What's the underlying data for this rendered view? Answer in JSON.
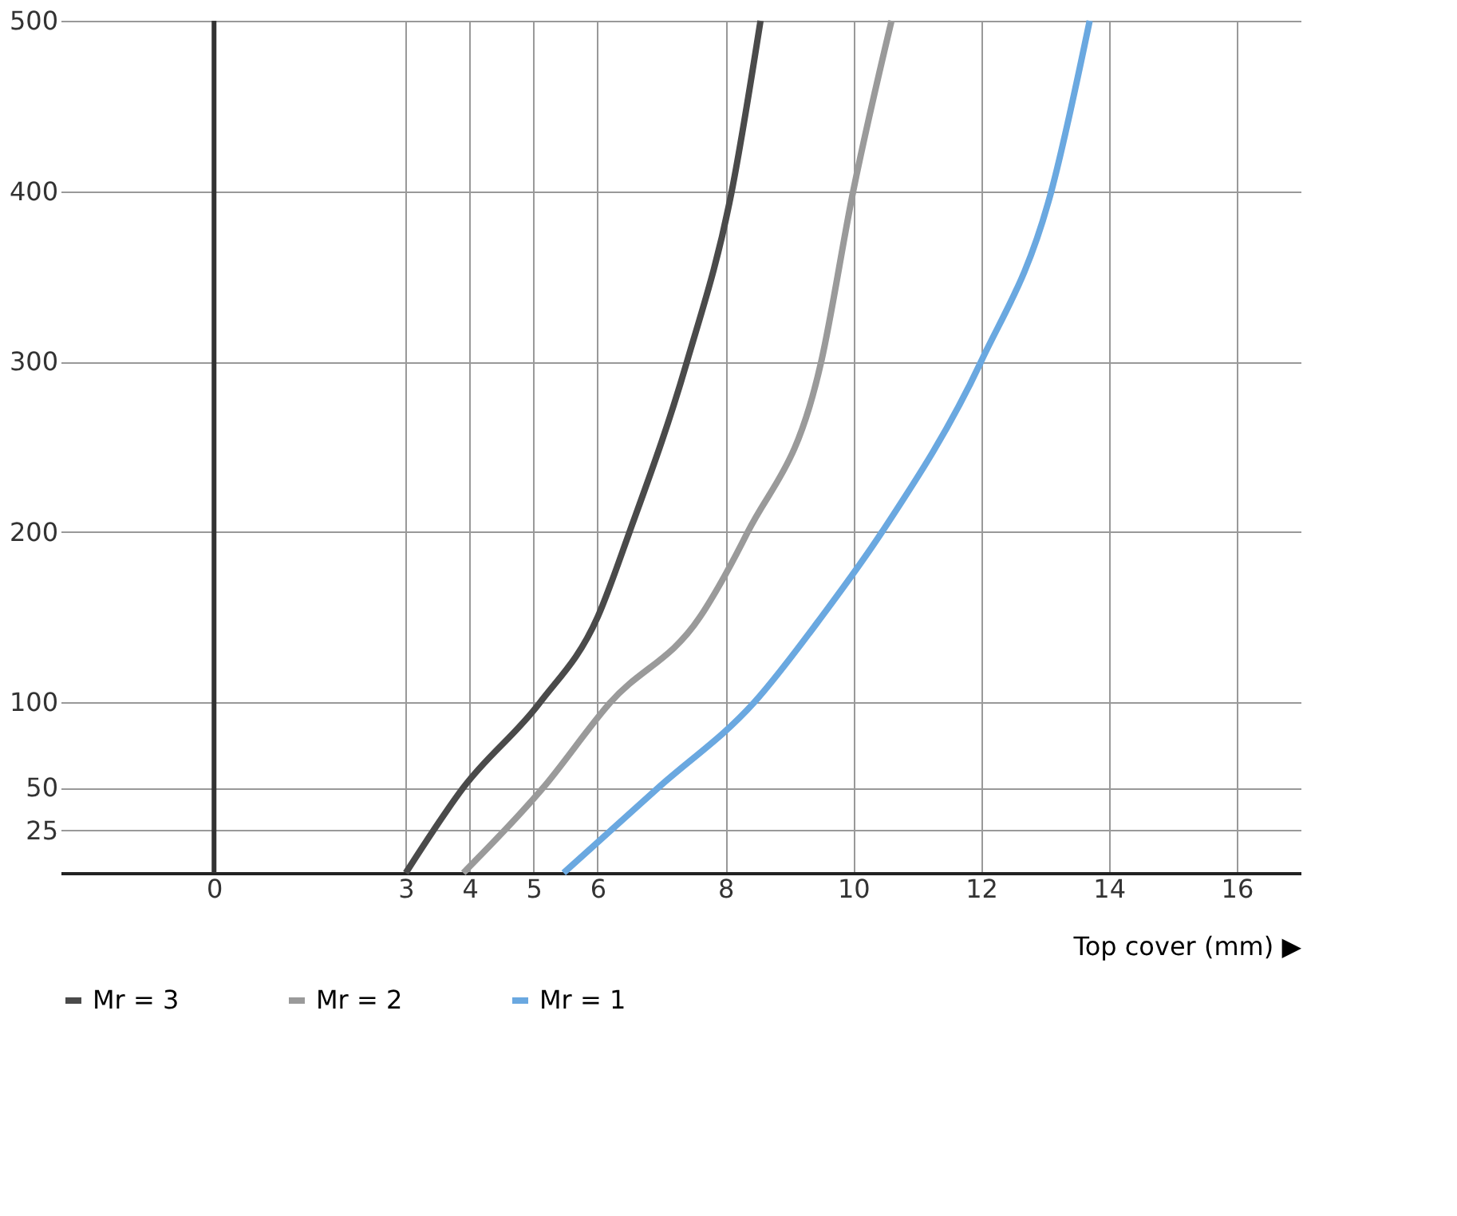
{
  "chart_data": {
    "type": "line",
    "xlabel": "Top cover (mm) ▶",
    "xlim": [
      -2.4,
      17
    ],
    "ylim": [
      0,
      500
    ],
    "xticks": [
      0,
      3,
      4,
      5,
      6,
      8,
      10,
      12,
      14,
      16
    ],
    "yticks": [
      25,
      50,
      100,
      200,
      300,
      400,
      500
    ],
    "grid": true,
    "legend": "bottom",
    "line_style": "solid",
    "marker": "none",
    "ref_lines": [
      {
        "axis": "x",
        "value": 0,
        "color": "#333333"
      }
    ],
    "series": [
      {
        "name": "Mr = 3",
        "color": "#4a4a4a",
        "x": [
          3.0,
          3.9,
          5.1,
          6.0,
          6.5,
          7.4,
          8.1,
          8.55
        ],
        "values": [
          0,
          50,
          100,
          150,
          200,
          300,
          400,
          500
        ]
      },
      {
        "name": "Mr = 2",
        "color": "#9a9a9a",
        "x": [
          3.9,
          5.15,
          6.2,
          7.6,
          8.35,
          9.5,
          10.0,
          10.6
        ],
        "values": [
          0,
          50,
          100,
          150,
          200,
          300,
          400,
          500
        ]
      },
      {
        "name": "Mr = 1",
        "color": "#6aa8e0",
        "x": [
          5.47,
          6.95,
          8.45,
          9.5,
          10.45,
          12.0,
          13.1,
          13.7
        ],
        "values": [
          0,
          50,
          100,
          150,
          200,
          300,
          400,
          500
        ]
      }
    ]
  }
}
